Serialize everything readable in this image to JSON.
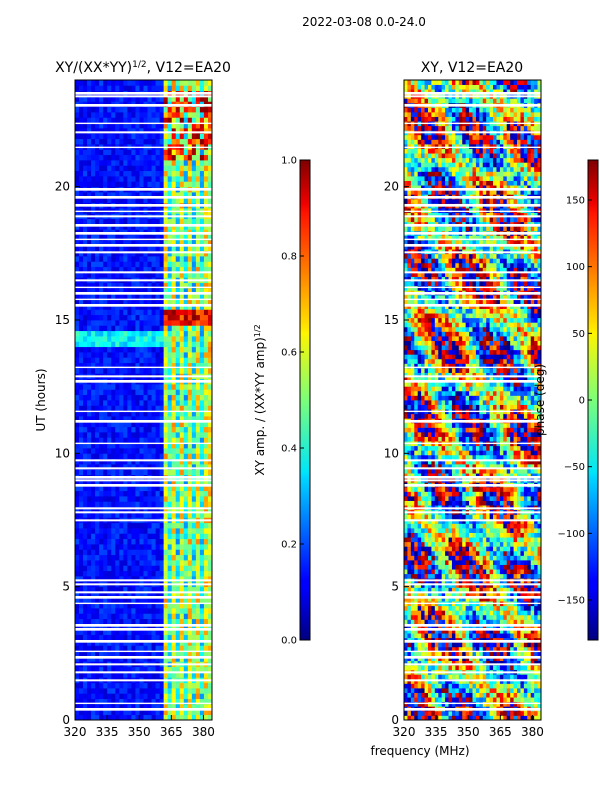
{
  "suptitle": "2022-03-08 0.0-24.0",
  "shared_xlabel": "frequency (MHz)",
  "chart_data": [
    {
      "type": "heatmap",
      "title_main": "XY/(XX*YY)",
      "title_sup": "1/2",
      "title_tail": ", V12=EA20",
      "ylabel": "UT (hours)",
      "x_ticks": [
        "320",
        "335",
        "350",
        "365",
        "380"
      ],
      "x_tick_values": [
        320,
        335,
        350,
        365,
        380
      ],
      "xlim": [
        320,
        384
      ],
      "y_ticks": [
        "0",
        "5",
        "10",
        "15",
        "20"
      ],
      "y_tick_values": [
        0,
        5,
        10,
        15,
        20
      ],
      "ylim": [
        0,
        24
      ],
      "colorbar": {
        "label_main": "XY amp. / (XX*YY amp)",
        "label_sup": "1/2",
        "ticks": [
          "0.0",
          "0.2",
          "0.4",
          "0.6",
          "0.8",
          "1.0"
        ],
        "tick_values": [
          0.0,
          0.2,
          0.4,
          0.6,
          0.8,
          1.0
        ],
        "range": [
          0.0,
          1.0
        ],
        "colormap": "jet"
      }
    },
    {
      "type": "heatmap",
      "title": "XY, V12=EA20",
      "x_ticks": [
        "320",
        "335",
        "350",
        "365",
        "380"
      ],
      "x_tick_values": [
        320,
        335,
        350,
        365,
        380
      ],
      "xlim": [
        320,
        384
      ],
      "y_ticks": [
        "0",
        "5",
        "10",
        "15",
        "20"
      ],
      "y_tick_values": [
        0,
        5,
        10,
        15,
        20
      ],
      "ylim": [
        0,
        24
      ],
      "colorbar": {
        "label": "phase (deg)",
        "ticks": [
          "−150",
          "−100",
          "−50",
          "0",
          "50",
          "100",
          "150"
        ],
        "tick_values": [
          -150,
          -100,
          -50,
          0,
          50,
          100,
          150
        ],
        "range": [
          -180,
          180
        ],
        "colormap": "jet"
      }
    }
  ]
}
